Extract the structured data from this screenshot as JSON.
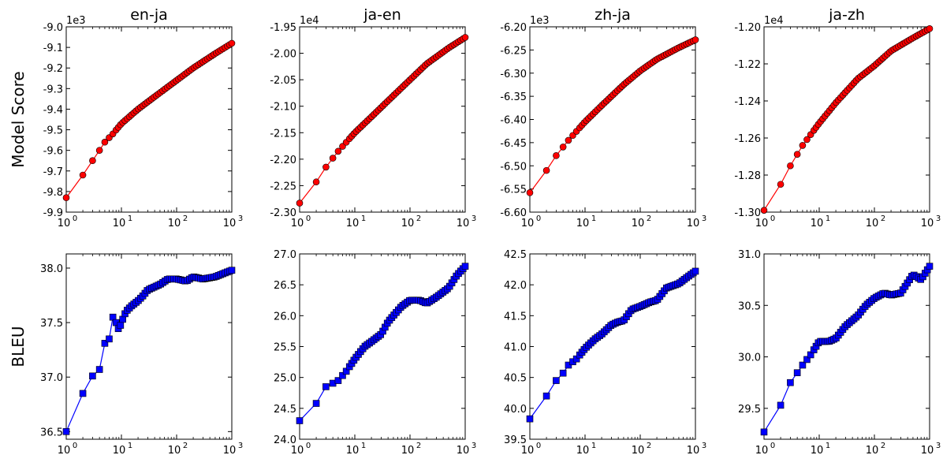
{
  "chart_data": [
    {
      "id": "p00",
      "type": "line",
      "title": "en-ja",
      "xlabel": "",
      "ylabel": "Model Score",
      "xscale": "log",
      "xlim": [
        1,
        1000
      ],
      "ylim": [
        -9.9,
        -9.0
      ],
      "multiplier": "1e3",
      "x_ticks": [
        {
          "base": "10",
          "exp": "0"
        },
        {
          "base": "10",
          "exp": "1"
        },
        {
          "base": "10",
          "exp": "2"
        },
        {
          "base": "10",
          "exp": "3"
        }
      ],
      "y_ticks": [
        "-9.9",
        "-9.8",
        "-9.7",
        "-9.6",
        "-9.5",
        "-9.4",
        "-9.3",
        "-9.2",
        "-9.1",
        "-9.0"
      ],
      "y_tick_values": [
        -9.9,
        -9.8,
        -9.7,
        -9.6,
        -9.5,
        -9.4,
        -9.3,
        -9.2,
        -9.1,
        -9.0
      ],
      "series": [
        {
          "color": "#ff0000",
          "marker": "circle",
          "anchors": [
            [
              1,
              -9.83
            ],
            [
              2,
              -9.72
            ],
            [
              3,
              -9.65
            ],
            [
              4,
              -9.6
            ],
            [
              5,
              -9.56
            ],
            [
              7,
              -9.52
            ],
            [
              10,
              -9.47
            ],
            [
              20,
              -9.4
            ],
            [
              50,
              -9.32
            ],
            [
              100,
              -9.26
            ],
            [
              200,
              -9.2
            ],
            [
              500,
              -9.13
            ],
            [
              1000,
              -9.08
            ]
          ]
        }
      ]
    },
    {
      "id": "p01",
      "type": "line",
      "title": "ja-en",
      "xlabel": "",
      "ylabel": "",
      "xscale": "log",
      "xlim": [
        1,
        1000
      ],
      "ylim": [
        -2.3,
        -1.95
      ],
      "multiplier": "1e4",
      "x_ticks": [
        {
          "base": "10",
          "exp": "0"
        },
        {
          "base": "10",
          "exp": "1"
        },
        {
          "base": "10",
          "exp": "2"
        },
        {
          "base": "10",
          "exp": "3"
        }
      ],
      "y_ticks": [
        "-2.30",
        "-2.25",
        "-2.20",
        "-2.15",
        "-2.10",
        "-2.05",
        "-2.00",
        "-1.95"
      ],
      "y_tick_values": [
        -2.3,
        -2.25,
        -2.2,
        -2.15,
        -2.1,
        -2.05,
        -2.0,
        -1.95
      ],
      "series": [
        {
          "color": "#ff0000",
          "marker": "circle",
          "anchors": [
            [
              1,
              -2.283
            ],
            [
              2,
              -2.243
            ],
            [
              3,
              -2.215
            ],
            [
              5,
              -2.185
            ],
            [
              10,
              -2.15
            ],
            [
              20,
              -2.12
            ],
            [
              50,
              -2.08
            ],
            [
              100,
              -2.05
            ],
            [
              200,
              -2.02
            ],
            [
              500,
              -1.99
            ],
            [
              1000,
              -1.97
            ]
          ]
        }
      ]
    },
    {
      "id": "p02",
      "type": "line",
      "title": "zh-ja",
      "xlabel": "",
      "ylabel": "",
      "xscale": "log",
      "xlim": [
        1,
        1000
      ],
      "ylim": [
        -6.6,
        -6.2
      ],
      "multiplier": "1e3",
      "x_ticks": [
        {
          "base": "10",
          "exp": "0"
        },
        {
          "base": "10",
          "exp": "1"
        },
        {
          "base": "10",
          "exp": "2"
        },
        {
          "base": "10",
          "exp": "3"
        }
      ],
      "y_ticks": [
        "-6.60",
        "-6.55",
        "-6.50",
        "-6.45",
        "-6.40",
        "-6.35",
        "-6.30",
        "-6.25",
        "-6.20"
      ],
      "y_tick_values": [
        -6.6,
        -6.55,
        -6.5,
        -6.45,
        -6.4,
        -6.35,
        -6.3,
        -6.25,
        -6.2
      ],
      "series": [
        {
          "color": "#ff0000",
          "marker": "circle",
          "anchors": [
            [
              1,
              -6.558
            ],
            [
              2,
              -6.51
            ],
            [
              3,
              -6.478
            ],
            [
              5,
              -6.445
            ],
            [
              10,
              -6.405
            ],
            [
              20,
              -6.37
            ],
            [
              50,
              -6.325
            ],
            [
              100,
              -6.295
            ],
            [
              200,
              -6.27
            ],
            [
              500,
              -6.245
            ],
            [
              1000,
              -6.228
            ]
          ]
        }
      ]
    },
    {
      "id": "p03",
      "type": "line",
      "title": "ja-zh",
      "xlabel": "",
      "ylabel": "",
      "xscale": "log",
      "xlim": [
        1,
        1000
      ],
      "ylim": [
        -1.3,
        -1.2
      ],
      "multiplier": "1e4",
      "x_ticks": [
        {
          "base": "10",
          "exp": "0"
        },
        {
          "base": "10",
          "exp": "1"
        },
        {
          "base": "10",
          "exp": "2"
        },
        {
          "base": "10",
          "exp": "3"
        }
      ],
      "y_ticks": [
        "-1.30",
        "-1.28",
        "-1.26",
        "-1.24",
        "-1.22",
        "-1.20"
      ],
      "y_tick_values": [
        -1.3,
        -1.28,
        -1.26,
        -1.24,
        -1.22,
        -1.2
      ],
      "series": [
        {
          "color": "#ff0000",
          "marker": "circle",
          "anchors": [
            [
              1,
              -1.299
            ],
            [
              2,
              -1.285
            ],
            [
              3,
              -1.275
            ],
            [
              5,
              -1.264
            ],
            [
              10,
              -1.252
            ],
            [
              20,
              -1.241
            ],
            [
              50,
              -1.228
            ],
            [
              100,
              -1.221
            ],
            [
              200,
              -1.213
            ],
            [
              500,
              -1.206
            ],
            [
              1000,
              -1.201
            ]
          ]
        }
      ]
    },
    {
      "id": "p10",
      "type": "line",
      "title": "",
      "xlabel": "",
      "ylabel": "BLEU",
      "xscale": "log",
      "xlim": [
        1,
        1000
      ],
      "ylim": [
        36.43,
        38.13
      ],
      "multiplier": "",
      "x_ticks": [
        {
          "base": "10",
          "exp": "0"
        },
        {
          "base": "10",
          "exp": "1"
        },
        {
          "base": "10",
          "exp": "2"
        },
        {
          "base": "10",
          "exp": "3"
        }
      ],
      "y_ticks": [
        "36.5",
        "37.0",
        "37.5",
        "38.0"
      ],
      "y_tick_values": [
        36.5,
        37.0,
        37.5,
        38.0
      ],
      "series": [
        {
          "color": "#0000ff",
          "marker": "square",
          "anchors": [
            [
              1,
              36.5
            ],
            [
              2,
              36.85
            ],
            [
              3,
              37.01
            ],
            [
              4,
              37.07
            ],
            [
              5,
              37.31
            ],
            [
              6,
              37.35
            ],
            [
              7,
              37.55
            ],
            [
              8,
              37.5
            ],
            [
              9,
              37.43
            ],
            [
              10,
              37.5
            ],
            [
              12,
              37.6
            ],
            [
              15,
              37.65
            ],
            [
              20,
              37.7
            ],
            [
              25,
              37.75
            ],
            [
              30,
              37.8
            ],
            [
              50,
              37.85
            ],
            [
              70,
              37.9
            ],
            [
              100,
              37.9
            ],
            [
              150,
              37.88
            ],
            [
              200,
              37.92
            ],
            [
              300,
              37.9
            ],
            [
              500,
              37.92
            ],
            [
              700,
              37.95
            ],
            [
              1000,
              37.98
            ]
          ]
        }
      ]
    },
    {
      "id": "p11",
      "type": "line",
      "title": "",
      "xlabel": "",
      "ylabel": "",
      "xscale": "log",
      "xlim": [
        1,
        1000
      ],
      "ylim": [
        24.0,
        27.0
      ],
      "multiplier": "",
      "x_ticks": [
        {
          "base": "10",
          "exp": "0"
        },
        {
          "base": "10",
          "exp": "1"
        },
        {
          "base": "10",
          "exp": "2"
        },
        {
          "base": "10",
          "exp": "3"
        }
      ],
      "y_ticks": [
        "24.0",
        "24.5",
        "25.0",
        "25.5",
        "26.0",
        "26.5",
        "27.0"
      ],
      "y_tick_values": [
        24.0,
        24.5,
        25.0,
        25.5,
        26.0,
        26.5,
        27.0
      ],
      "series": [
        {
          "color": "#0000ff",
          "marker": "square",
          "anchors": [
            [
              1,
              24.3
            ],
            [
              2,
              24.58
            ],
            [
              3,
              24.85
            ],
            [
              5,
              24.95
            ],
            [
              7,
              25.1
            ],
            [
              10,
              25.3
            ],
            [
              15,
              25.5
            ],
            [
              20,
              25.58
            ],
            [
              30,
              25.7
            ],
            [
              40,
              25.9
            ],
            [
              50,
              26.0
            ],
            [
              70,
              26.15
            ],
            [
              100,
              26.25
            ],
            [
              150,
              26.25
            ],
            [
              200,
              26.2
            ],
            [
              300,
              26.3
            ],
            [
              500,
              26.45
            ],
            [
              700,
              26.65
            ],
            [
              1000,
              26.8
            ]
          ]
        }
      ]
    },
    {
      "id": "p12",
      "type": "line",
      "title": "",
      "xlabel": "",
      "ylabel": "",
      "xscale": "log",
      "xlim": [
        1,
        1000
      ],
      "ylim": [
        39.5,
        42.5
      ],
      "multiplier": "",
      "x_ticks": [
        {
          "base": "10",
          "exp": "0"
        },
        {
          "base": "10",
          "exp": "1"
        },
        {
          "base": "10",
          "exp": "2"
        },
        {
          "base": "10",
          "exp": "3"
        }
      ],
      "y_ticks": [
        "39.5",
        "40.0",
        "40.5",
        "41.0",
        "41.5",
        "42.0",
        "42.5"
      ],
      "y_tick_values": [
        39.5,
        40.0,
        40.5,
        41.0,
        41.5,
        42.0,
        42.5
      ],
      "series": [
        {
          "color": "#0000ff",
          "marker": "square",
          "anchors": [
            [
              1,
              39.83
            ],
            [
              2,
              40.2
            ],
            [
              3,
              40.45
            ],
            [
              4,
              40.57
            ],
            [
              5,
              40.7
            ],
            [
              7,
              40.8
            ],
            [
              10,
              40.97
            ],
            [
              15,
              41.12
            ],
            [
              20,
              41.2
            ],
            [
              30,
              41.35
            ],
            [
              40,
              41.4
            ],
            [
              50,
              41.42
            ],
            [
              70,
              41.6
            ],
            [
              100,
              41.65
            ],
            [
              150,
              41.72
            ],
            [
              200,
              41.75
            ],
            [
              300,
              41.95
            ],
            [
              500,
              42.02
            ],
            [
              700,
              42.12
            ],
            [
              1000,
              42.22
            ]
          ]
        }
      ]
    },
    {
      "id": "p13",
      "type": "line",
      "title": "",
      "xlabel": "",
      "ylabel": "",
      "xscale": "log",
      "xlim": [
        1,
        1000
      ],
      "ylim": [
        29.2,
        31.0
      ],
      "multiplier": "",
      "x_ticks": [
        {
          "base": "10",
          "exp": "0"
        },
        {
          "base": "10",
          "exp": "1"
        },
        {
          "base": "10",
          "exp": "2"
        },
        {
          "base": "10",
          "exp": "3"
        }
      ],
      "y_ticks": [
        "29.5",
        "30.0",
        "30.5",
        "31.0"
      ],
      "y_tick_values": [
        29.5,
        30.0,
        30.5,
        31.0
      ],
      "series": [
        {
          "color": "#0000ff",
          "marker": "square",
          "anchors": [
            [
              1,
              29.27
            ],
            [
              2,
              29.53
            ],
            [
              3,
              29.75
            ],
            [
              5,
              29.92
            ],
            [
              7,
              30.02
            ],
            [
              10,
              30.15
            ],
            [
              15,
              30.15
            ],
            [
              20,
              30.18
            ],
            [
              30,
              30.3
            ],
            [
              50,
              30.4
            ],
            [
              70,
              30.5
            ],
            [
              100,
              30.57
            ],
            [
              150,
              30.62
            ],
            [
              200,
              30.6
            ],
            [
              300,
              30.62
            ],
            [
              500,
              30.8
            ],
            [
              700,
              30.75
            ],
            [
              1000,
              30.88
            ]
          ]
        }
      ]
    }
  ]
}
